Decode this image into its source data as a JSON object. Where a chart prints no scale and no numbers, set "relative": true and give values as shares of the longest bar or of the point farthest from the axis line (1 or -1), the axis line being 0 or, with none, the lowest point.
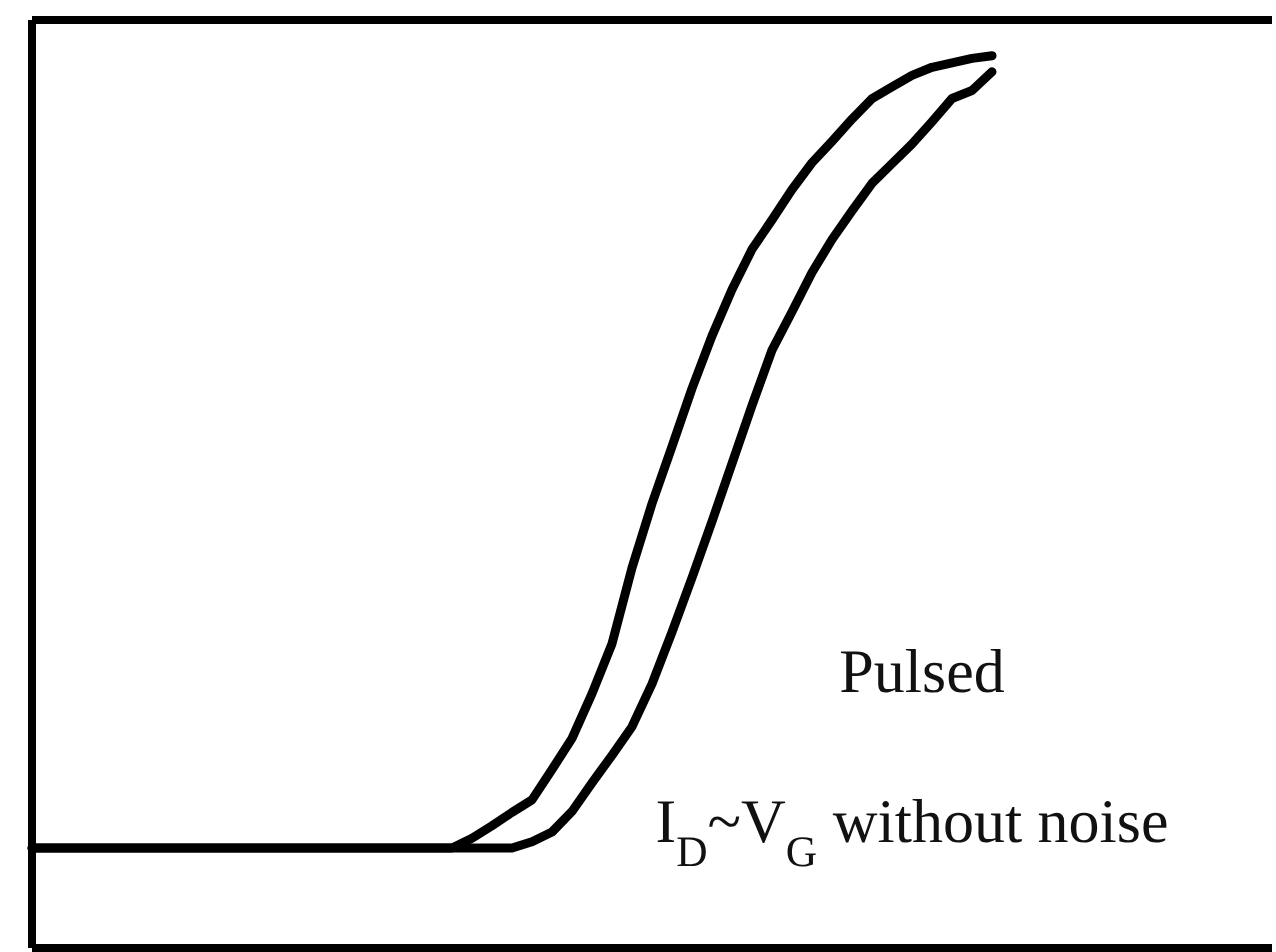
{
  "chart_data": {
    "type": "line",
    "relative": true,
    "categories": [
      null,
      null,
      null,
      null,
      null,
      null,
      null,
      null,
      null,
      null,
      null,
      null,
      null,
      null,
      null,
      null,
      null,
      null,
      null,
      null,
      null,
      null,
      null,
      null,
      null,
      null,
      null,
      null,
      null,
      null,
      null,
      null,
      null,
      null,
      null,
      null,
      null,
      null,
      null,
      null,
      null,
      null,
      null,
      null,
      null,
      null,
      null,
      null,
      null,
      null,
      null,
      null,
      null,
      null,
      null,
      null,
      null,
      null,
      null,
      null,
      null,
      null,
      null
    ],
    "series": [
      {
        "color": "#000000",
        "values": [
          0.112,
          0.112,
          0.112,
          0.112,
          0.112,
          0.112,
          0.112,
          0.112,
          0.112,
          0.112,
          0.112,
          0.112,
          0.112,
          0.112,
          0.112,
          0.112,
          0.112,
          0.112,
          0.112,
          0.112,
          0.112,
          0.112,
          0.123,
          0.137,
          0.152,
          0.166,
          0.2,
          0.235,
          0.285,
          0.341,
          0.426,
          0.498,
          0.562,
          0.627,
          0.686,
          0.738,
          0.783,
          0.816,
          0.85,
          0.88,
          0.904,
          0.929,
          0.952,
          0.965,
          0.978,
          0.987,
          0.992,
          0.997,
          1.0,
          null,
          null,
          null,
          null,
          null,
          null,
          null,
          null,
          null,
          null,
          null,
          null,
          null,
          null
        ]
      },
      {
        "color": "#000000",
        "values": [
          0.112,
          0.112,
          0.112,
          0.112,
          0.112,
          0.112,
          0.112,
          0.112,
          0.112,
          0.112,
          0.112,
          0.112,
          0.112,
          0.112,
          0.112,
          0.112,
          0.112,
          0.112,
          0.112,
          0.112,
          0.112,
          0.112,
          0.112,
          0.112,
          0.112,
          0.119,
          0.13,
          0.153,
          0.185,
          0.216,
          0.248,
          0.296,
          0.354,
          0.415,
          0.478,
          0.543,
          0.608,
          0.67,
          0.713,
          0.757,
          0.794,
          0.826,
          0.857,
          0.879,
          0.901,
          0.926,
          0.952,
          0.961,
          0.982,
          null,
          null,
          null,
          null,
          null,
          null,
          null,
          null,
          null,
          null,
          null,
          null,
          null,
          null
        ]
      }
    ],
    "annotations": [
      "Pulsed",
      "I$_{D}$~V$_{G}$ without noise"
    ],
    "marker": "none",
    "line_style": "solid"
  }
}
